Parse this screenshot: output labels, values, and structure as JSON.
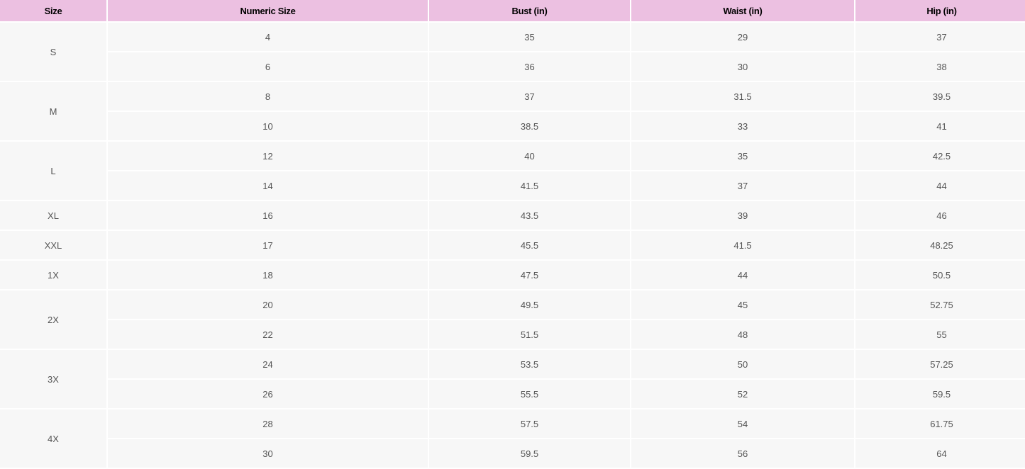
{
  "headers": [
    "Size",
    "Numeric Size",
    "Bust (in)",
    "Waist (in)",
    "Hip (in)"
  ],
  "groups": [
    {
      "size": "S",
      "rows": [
        [
          "4",
          "35",
          "29",
          "37"
        ],
        [
          "6",
          "36",
          "30",
          "38"
        ]
      ]
    },
    {
      "size": "M",
      "rows": [
        [
          "8",
          "37",
          "31.5",
          "39.5"
        ],
        [
          "10",
          "38.5",
          "33",
          "41"
        ]
      ]
    },
    {
      "size": "L",
      "rows": [
        [
          "12",
          "40",
          "35",
          "42.5"
        ],
        [
          "14",
          "41.5",
          "37",
          "44"
        ]
      ]
    },
    {
      "size": "XL",
      "rows": [
        [
          "16",
          "43.5",
          "39",
          "46"
        ]
      ]
    },
    {
      "size": "XXL",
      "rows": [
        [
          "17",
          "45.5",
          "41.5",
          "48.25"
        ]
      ]
    },
    {
      "size": "1X",
      "rows": [
        [
          "18",
          "47.5",
          "44",
          "50.5"
        ]
      ]
    },
    {
      "size": "2X",
      "rows": [
        [
          "20",
          "49.5",
          "45",
          "52.75"
        ],
        [
          "22",
          "51.5",
          "48",
          "55"
        ]
      ]
    },
    {
      "size": "3X",
      "rows": [
        [
          "24",
          "53.5",
          "50",
          "57.25"
        ],
        [
          "26",
          "55.5",
          "52",
          "59.5"
        ]
      ]
    },
    {
      "size": "4X",
      "rows": [
        [
          "28",
          "57.5",
          "54",
          "61.75"
        ],
        [
          "30",
          "59.5",
          "56",
          "64"
        ]
      ]
    }
  ],
  "colors": {
    "header_bg": "#ecc0e1",
    "cell_bg": "#f7f7f7",
    "text": "#555555"
  }
}
